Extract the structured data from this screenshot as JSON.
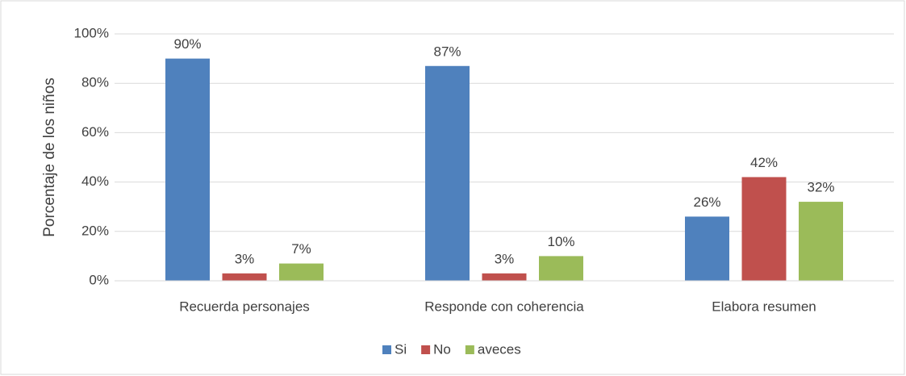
{
  "chart_data": {
    "type": "bar",
    "y_label": "Porcentaje de los niños",
    "categories": [
      "Recuerda personajes",
      "Responde con coherencia",
      "Elabora resumen"
    ],
    "series": [
      {
        "name": "Si",
        "color": "#4f81bd",
        "values": [
          90,
          87,
          26
        ],
        "value_labels": [
          "90%",
          "87%",
          "26%"
        ]
      },
      {
        "name": "No",
        "color": "#c0504d",
        "values": [
          3,
          3,
          42
        ],
        "value_labels": [
          "3%",
          "3%",
          "42%"
        ]
      },
      {
        "name": "aveces",
        "color": "#9bbb59",
        "values": [
          7,
          10,
          32
        ],
        "value_labels": [
          "7%",
          "10%",
          "32%"
        ]
      }
    ],
    "ylim": [
      0,
      100
    ],
    "yticks": [
      {
        "value": 0,
        "label": "0%"
      },
      {
        "value": 20,
        "label": "20%"
      },
      {
        "value": 40,
        "label": "40%"
      },
      {
        "value": 60,
        "label": "60%"
      },
      {
        "value": 80,
        "label": "80%"
      },
      {
        "value": 100,
        "label": "100%"
      }
    ],
    "grid": true,
    "legend": "bottom"
  }
}
